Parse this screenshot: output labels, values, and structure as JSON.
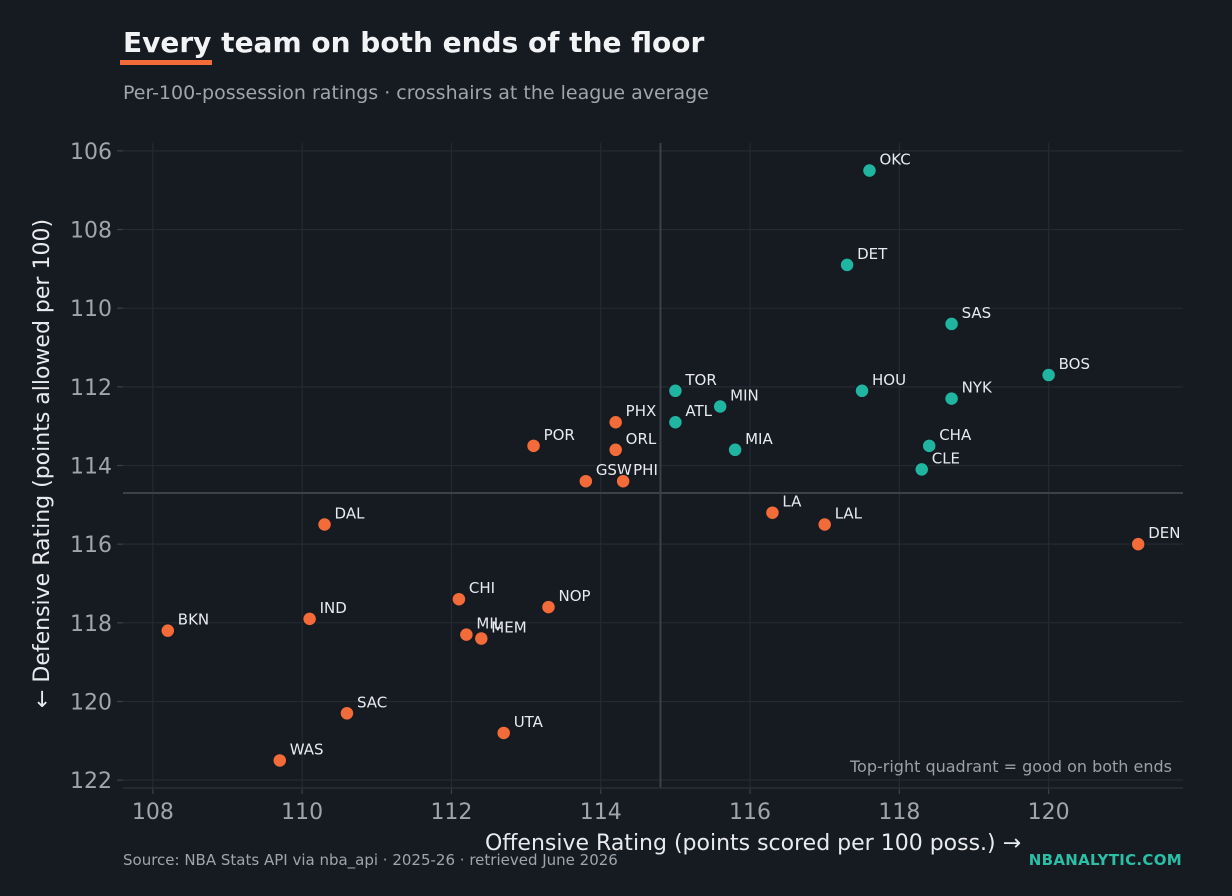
{
  "header": {
    "title": "Every team on both ends of the floor",
    "subtitle": "Per-100-possession ratings · crosshairs at the league average"
  },
  "footer": {
    "source": "Source: NBA Stats API via nba_api · 2025-26 · retrieved June 2026",
    "brand": "NBANALYTIC.COM"
  },
  "colors": {
    "background": "#161a21",
    "above_average": "#1fb5a0",
    "below_average": "#f26b38",
    "grid": "#252a32",
    "crosshair": "#3b4049",
    "accent": "#f26b38"
  },
  "chart_data": {
    "type": "scatter",
    "xlabel": "Offensive Rating  (points scored per 100 poss.) →",
    "ylabel": "← Defensive Rating  (points allowed per 100)",
    "xlim": [
      107.6,
      121.8
    ],
    "ylim": [
      122.2,
      105.8
    ],
    "y_inverted": true,
    "xticks": [
      "108",
      "110",
      "112",
      "114",
      "116",
      "118",
      "120"
    ],
    "yticks": [
      "106",
      "108",
      "110",
      "112",
      "114",
      "116",
      "118",
      "120",
      "122"
    ],
    "crosshair": {
      "x": 114.8,
      "y": 114.7
    },
    "annotation": "Top-right quadrant = good on both ends",
    "grid": true,
    "points": [
      {
        "team": "OKC",
        "x": 117.6,
        "y": 106.5,
        "group": "above"
      },
      {
        "team": "DET",
        "x": 117.3,
        "y": 108.9,
        "group": "above"
      },
      {
        "team": "SAS",
        "x": 118.7,
        "y": 110.4,
        "group": "above"
      },
      {
        "team": "BOS",
        "x": 120.0,
        "y": 111.7,
        "group": "above"
      },
      {
        "team": "TOR",
        "x": 115.0,
        "y": 112.1,
        "group": "above"
      },
      {
        "team": "HOU",
        "x": 117.5,
        "y": 112.1,
        "group": "above"
      },
      {
        "team": "MIN",
        "x": 115.6,
        "y": 112.5,
        "group": "above"
      },
      {
        "team": "NYK",
        "x": 118.7,
        "y": 112.3,
        "group": "above"
      },
      {
        "team": "ATL",
        "x": 115.0,
        "y": 112.9,
        "group": "above"
      },
      {
        "team": "MIA",
        "x": 115.8,
        "y": 113.6,
        "group": "above"
      },
      {
        "team": "CHA",
        "x": 118.4,
        "y": 113.5,
        "group": "above"
      },
      {
        "team": "CLE",
        "x": 118.3,
        "y": 114.1,
        "group": "above"
      },
      {
        "team": "PHX",
        "x": 114.2,
        "y": 112.9,
        "group": "below"
      },
      {
        "team": "POR",
        "x": 113.1,
        "y": 113.5,
        "group": "below"
      },
      {
        "team": "ORL",
        "x": 114.2,
        "y": 113.6,
        "group": "below"
      },
      {
        "team": "GSW",
        "x": 113.8,
        "y": 114.4,
        "group": "below"
      },
      {
        "team": "PHI",
        "x": 114.3,
        "y": 114.4,
        "group": "below"
      },
      {
        "team": "LA",
        "x": 116.3,
        "y": 115.2,
        "group": "below"
      },
      {
        "team": "LAL",
        "x": 117.0,
        "y": 115.5,
        "group": "below"
      },
      {
        "team": "DEN",
        "x": 121.2,
        "y": 116.0,
        "group": "below"
      },
      {
        "team": "DAL",
        "x": 110.3,
        "y": 115.5,
        "group": "below"
      },
      {
        "team": "CHI",
        "x": 112.1,
        "y": 117.4,
        "group": "below"
      },
      {
        "team": "NOP",
        "x": 113.3,
        "y": 117.6,
        "group": "below"
      },
      {
        "team": "IND",
        "x": 110.1,
        "y": 117.9,
        "group": "below"
      },
      {
        "team": "BKN",
        "x": 108.2,
        "y": 118.2,
        "group": "below"
      },
      {
        "team": "MIL",
        "x": 112.2,
        "y": 118.3,
        "group": "below"
      },
      {
        "team": "MEM",
        "x": 112.4,
        "y": 118.4,
        "group": "below"
      },
      {
        "team": "SAC",
        "x": 110.6,
        "y": 120.3,
        "group": "below"
      },
      {
        "team": "UTA",
        "x": 112.7,
        "y": 120.8,
        "group": "below"
      },
      {
        "team": "WAS",
        "x": 109.7,
        "y": 121.5,
        "group": "below"
      }
    ]
  }
}
